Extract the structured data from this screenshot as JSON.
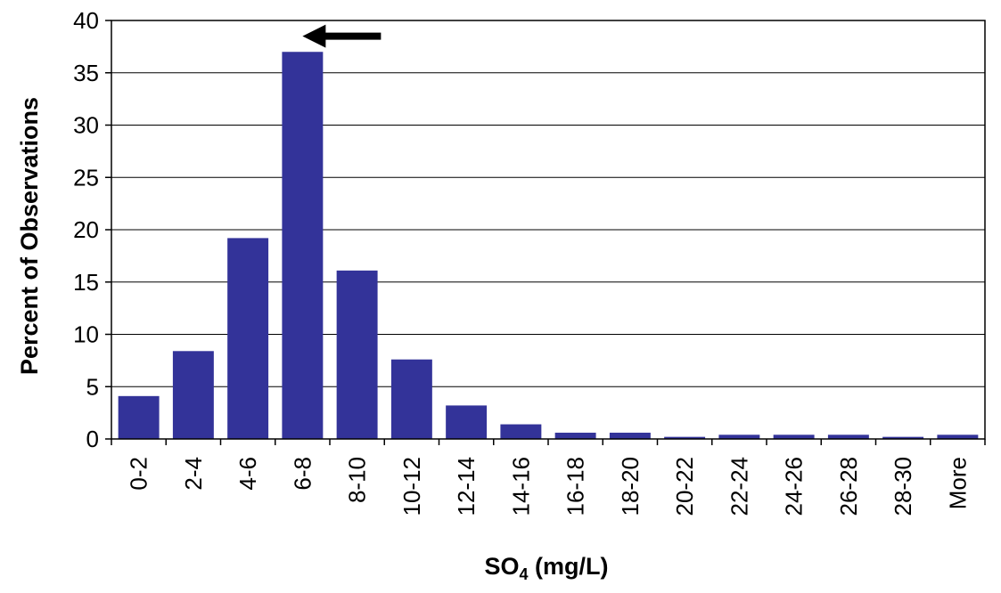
{
  "chart_data": {
    "type": "bar",
    "categories": [
      "0-2",
      "2-4",
      "4-6",
      "6-8",
      "8-10",
      "10-12",
      "12-14",
      "14-16",
      "16-18",
      "18-20",
      "20-22",
      "22-24",
      "24-26",
      "26-28",
      "28-30",
      "More"
    ],
    "values": [
      4.1,
      8.4,
      19.2,
      37.0,
      16.1,
      7.6,
      3.2,
      1.4,
      0.6,
      0.6,
      0.2,
      0.4,
      0.4,
      0.4,
      0.2,
      0.4
    ],
    "xlabel_main": "SO",
    "xlabel_sub": "4",
    "xlabel_unit": " (mg/L)",
    "ylabel": "Percent of Observations",
    "ylim": [
      0,
      40
    ],
    "yticks": [
      0,
      5,
      10,
      15,
      20,
      25,
      30,
      35,
      40
    ],
    "grid": true,
    "bar_color": "#333399",
    "annotation": {
      "type": "arrow",
      "points_to": "6-8",
      "direction": "left"
    }
  }
}
